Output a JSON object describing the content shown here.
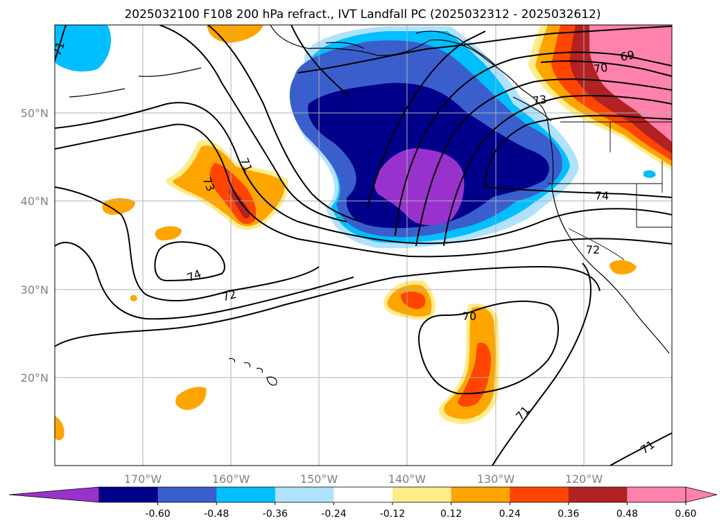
{
  "title": "2025032100 F108 200 hPa refract., IVT Landfall PC (2025032312 - 2025032612)",
  "axes": {
    "lon_ticks": [
      "170°W",
      "160°W",
      "150°W",
      "140°W",
      "130°W",
      "120°W"
    ],
    "lat_ticks": [
      "50°N",
      "40°N",
      "30°N",
      "20°N"
    ],
    "lon_range": [
      -180,
      -110
    ],
    "lat_range": [
      10,
      60
    ],
    "grid": true
  },
  "colorbar": {
    "extend": "both",
    "colors": [
      "#9932cc",
      "#00008b",
      "#3a5fcd",
      "#00bfff",
      "#b0e2ff",
      "#ffffff",
      "#ffec8b",
      "#ffa500",
      "#ff4500",
      "#b22222",
      "#ff82ab",
      "#ff82ab"
    ],
    "ticks": [
      "-0.60",
      "-0.48",
      "-0.36",
      "-0.24",
      "-0.12",
      "0.12",
      "0.24",
      "0.36",
      "0.48",
      "0.60"
    ]
  },
  "contour_labels": [
    "71",
    "73",
    "71",
    "74",
    "72",
    "70",
    "71",
    "71",
    "69",
    "70",
    "73",
    "74",
    "72"
  ]
}
